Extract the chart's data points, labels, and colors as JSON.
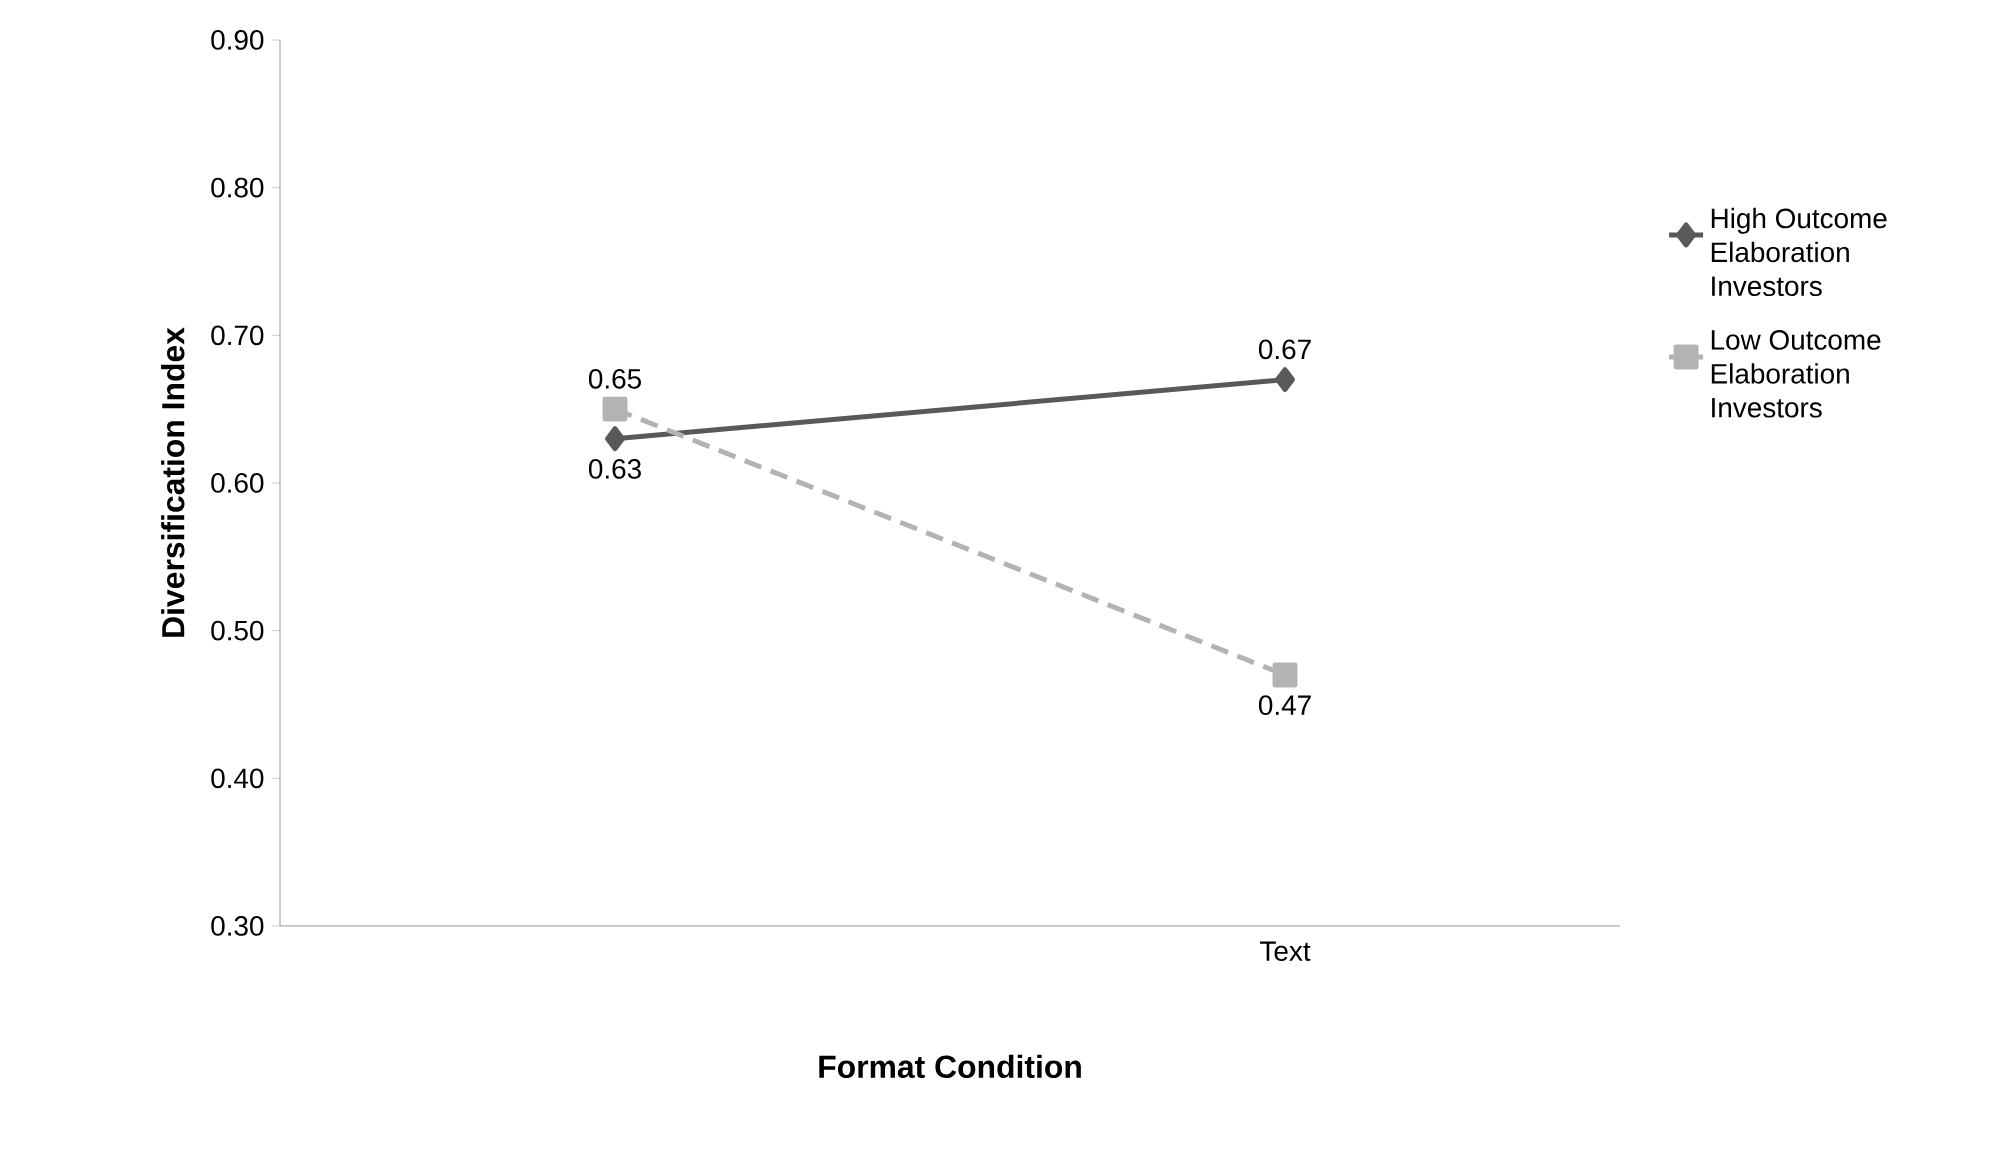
{
  "chart_data": {
    "type": "line",
    "xlabel": "Format Condition",
    "ylabel": "Diversification Index",
    "categories": [
      null,
      "Text"
    ],
    "series": [
      {
        "name": "High Outcome Elaboration Investors",
        "color": "#595959",
        "values": [
          0.63,
          0.67
        ],
        "marker": "diamond",
        "line_style": "solid"
      },
      {
        "name": "Low Outcome Elaboration Investors",
        "color": "#b3b3b3",
        "values": [
          0.65,
          0.47
        ],
        "marker": "square",
        "line_style": "dashed"
      }
    ],
    "ylim": [
      0.3,
      0.9
    ],
    "yticks": [
      {
        "value": 0.3,
        "label": "0.30"
      },
      {
        "value": 0.4,
        "label": "0.40"
      },
      {
        "value": 0.5,
        "label": "0.50"
      },
      {
        "value": 0.6,
        "label": "0.60"
      },
      {
        "value": 0.7,
        "label": "0.70"
      },
      {
        "value": 0.8,
        "label": "0.80"
      },
      {
        "value": 0.9,
        "label": "0.90"
      }
    ],
    "grid": false,
    "legend": "right",
    "data_labels": true
  }
}
